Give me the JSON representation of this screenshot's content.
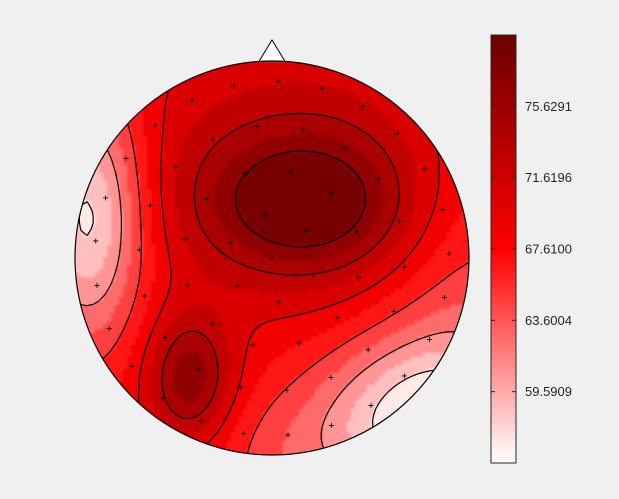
{
  "chart_data": {
    "type": "heatmap",
    "subtype": "eeg-topographic-map",
    "title": "",
    "colormap": "white-to-dark-red",
    "colors": {
      "low": "#ffffff",
      "mid": "#ff0000",
      "high": "#6b0000",
      "background": "#f0f0f0",
      "contour": "#000000"
    },
    "colorbar": {
      "orientation": "vertical",
      "placement": "right",
      "range": [
        55.58,
        79.64
      ],
      "ticks": [
        59.5909,
        63.6004,
        67.61,
        71.6196,
        75.6291
      ],
      "tick_labels": [
        "59.5909",
        "63.6004",
        "67.6100",
        "71.6196",
        "75.6291"
      ]
    },
    "head": {
      "nose": "top",
      "electrode_marker": "+"
    },
    "value_peaks": [
      {
        "region": "central",
        "level": "high",
        "value": 77.5
      },
      {
        "region": "left-posterior",
        "level": "high",
        "value": 77.0
      },
      {
        "region": "far-left",
        "level": "low",
        "value": 56.5
      },
      {
        "region": "right-posterior",
        "level": "low",
        "value": 56.8
      }
    ],
    "electrode_count": 62
  }
}
